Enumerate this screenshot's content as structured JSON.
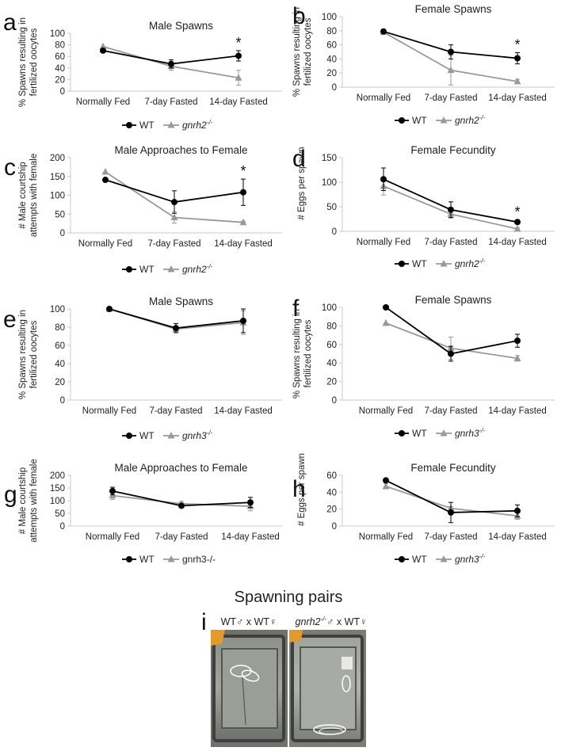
{
  "figure": {
    "bottom_panel": {
      "letter": "i",
      "title": "Spawning pairs",
      "left_label": "WT♂ x WT♀",
      "right_label_gene": "gnrh2",
      "right_label_sup": "-/-",
      "right_label_rest": "♂ x WT♀"
    }
  },
  "colors": {
    "wt": "#000000",
    "mutant": "#999999",
    "axis": "#c8c8c8"
  },
  "chart_data": [
    {
      "panel": "a",
      "type": "line",
      "title": "Male Spawns",
      "ylabel": "% Spawns resulting in fertilized oocytes",
      "categories": [
        "Normally Fed",
        "7-day Fasted",
        "14-day Fasted"
      ],
      "ylim": [
        0,
        100
      ],
      "yticks": [
        0,
        20,
        40,
        60,
        80,
        100
      ],
      "series": [
        {
          "name": "WT",
          "values": [
            70,
            47,
            61
          ],
          "errors": [
            0,
            7,
            9
          ]
        },
        {
          "name": "gnrh2",
          "sup": "-/-",
          "values": [
            77,
            43,
            23
          ],
          "errors": [
            0,
            7,
            13
          ]
        }
      ],
      "annotations": [
        {
          "x": "14-day Fasted",
          "text": "*"
        }
      ]
    },
    {
      "panel": "b",
      "type": "line",
      "title": "Female Spawns",
      "ylabel": "% Spawns resulting in fertilized oocytes",
      "categories": [
        "Normally Fed",
        "7-day Fasted",
        "14-day Fasted"
      ],
      "ylim": [
        0,
        100
      ],
      "yticks": [
        0,
        20,
        40,
        60,
        80,
        100
      ],
      "series": [
        {
          "name": "WT",
          "values": [
            79,
            50,
            41
          ],
          "errors": [
            0,
            10,
            8
          ]
        },
        {
          "name": "gnrh2",
          "sup": "-/-",
          "values": [
            78,
            24,
            8
          ],
          "errors": [
            0,
            21,
            3
          ]
        }
      ],
      "annotations": [
        {
          "x": "14-day Fasted",
          "text": "*"
        }
      ]
    },
    {
      "panel": "c",
      "type": "line",
      "title": "Male Approaches to Female",
      "ylabel": "# Male courtship attempts with female",
      "categories": [
        "Normally Fed",
        "7-day Fasted",
        "14-day Fasted"
      ],
      "ylim": [
        0,
        200
      ],
      "yticks": [
        0,
        50,
        100,
        150,
        200
      ],
      "series": [
        {
          "name": "WT",
          "values": [
            141,
            82,
            108
          ],
          "errors": [
            0,
            30,
            35
          ]
        },
        {
          "name": "gnrh2",
          "sup": "-/-",
          "values": [
            162,
            41,
            28
          ],
          "errors": [
            0,
            15,
            3
          ]
        }
      ],
      "annotations": [
        {
          "x": "14-day Fasted",
          "text": "*"
        }
      ]
    },
    {
      "panel": "d",
      "type": "line",
      "title": "Female Fecundity",
      "ylabel": "# Eggs per spawn",
      "categories": [
        "Normally Fed",
        "7-day Fasted",
        "14-day Fasted"
      ],
      "ylim": [
        0,
        150
      ],
      "yticks": [
        0,
        50,
        100,
        150
      ],
      "series": [
        {
          "name": "WT",
          "values": [
            106,
            44,
            19
          ],
          "errors": [
            23,
            16,
            4
          ]
        },
        {
          "name": "gnrh2",
          "sup": "-/-",
          "values": [
            92,
            35,
            5
          ],
          "errors": [
            18,
            8,
            2
          ]
        }
      ],
      "annotations": [
        {
          "x": "14-day Fasted",
          "text": "*"
        }
      ]
    },
    {
      "panel": "e",
      "type": "line",
      "title": "Male Spawns",
      "ylabel": "% Spawns resulting in fertilized oocytes",
      "categories": [
        "Normally Fed",
        "7-day Fasted",
        "14-day Fasted"
      ],
      "ylim": [
        0,
        100
      ],
      "yticks": [
        0,
        20,
        40,
        60,
        80,
        100
      ],
      "series": [
        {
          "name": "WT",
          "values": [
            100,
            79,
            87
          ],
          "errors": [
            0,
            5,
            13
          ]
        },
        {
          "name": "gnrh3",
          "sup": "-/-",
          "values": [
            100,
            78,
            85
          ],
          "errors": [
            0,
            3,
            13
          ]
        }
      ],
      "annotations": []
    },
    {
      "panel": "f",
      "type": "line",
      "title": "Female Spawns",
      "ylabel": "% Spawns resulting in fertilized oocytes",
      "categories": [
        "Normally Fed",
        "7-day Fasted",
        "14-day Fasted"
      ],
      "ylim": [
        0,
        100
      ],
      "yticks": [
        0,
        20,
        40,
        60,
        80,
        100
      ],
      "series": [
        {
          "name": "WT",
          "values": [
            100,
            50,
            64
          ],
          "errors": [
            0,
            8,
            7
          ]
        },
        {
          "name": "gnrh3",
          "sup": "-/-",
          "values": [
            83,
            56,
            45
          ],
          "errors": [
            0,
            12,
            3
          ]
        }
      ],
      "annotations": []
    },
    {
      "panel": "g",
      "type": "line",
      "title": "Male Approaches to Female",
      "ylabel": "# Male courtship attempts with female",
      "categories": [
        "Normally Fed",
        "7-day Fasted",
        "14-day Fasted"
      ],
      "ylim": [
        0,
        200
      ],
      "yticks": [
        0,
        50,
        100,
        150,
        200
      ],
      "series": [
        {
          "name": "WT",
          "values": [
            138,
            80,
            93
          ],
          "errors": [
            15,
            6,
            20
          ]
        },
        {
          "name": "gnrh3-/-",
          "sup": "",
          "values": [
            120,
            88,
            78
          ],
          "errors": [
            15,
            8,
            18
          ]
        }
      ],
      "annotations": []
    },
    {
      "panel": "h",
      "type": "line",
      "title": "Female Fecundity",
      "ylabel": "# Eggs per spawn",
      "categories": [
        "Normally Fed",
        "7-day Fasted",
        "14-day Fasted"
      ],
      "ylim": [
        0,
        60
      ],
      "yticks": [
        0,
        20,
        40,
        60
      ],
      "series": [
        {
          "name": "WT",
          "values": [
            54,
            16,
            18
          ],
          "errors": [
            0,
            12,
            7
          ]
        },
        {
          "name": "gnrh3",
          "sup": "-/-",
          "values": [
            47,
            21,
            12
          ],
          "errors": [
            3,
            2,
            4
          ]
        }
      ],
      "annotations": []
    }
  ]
}
